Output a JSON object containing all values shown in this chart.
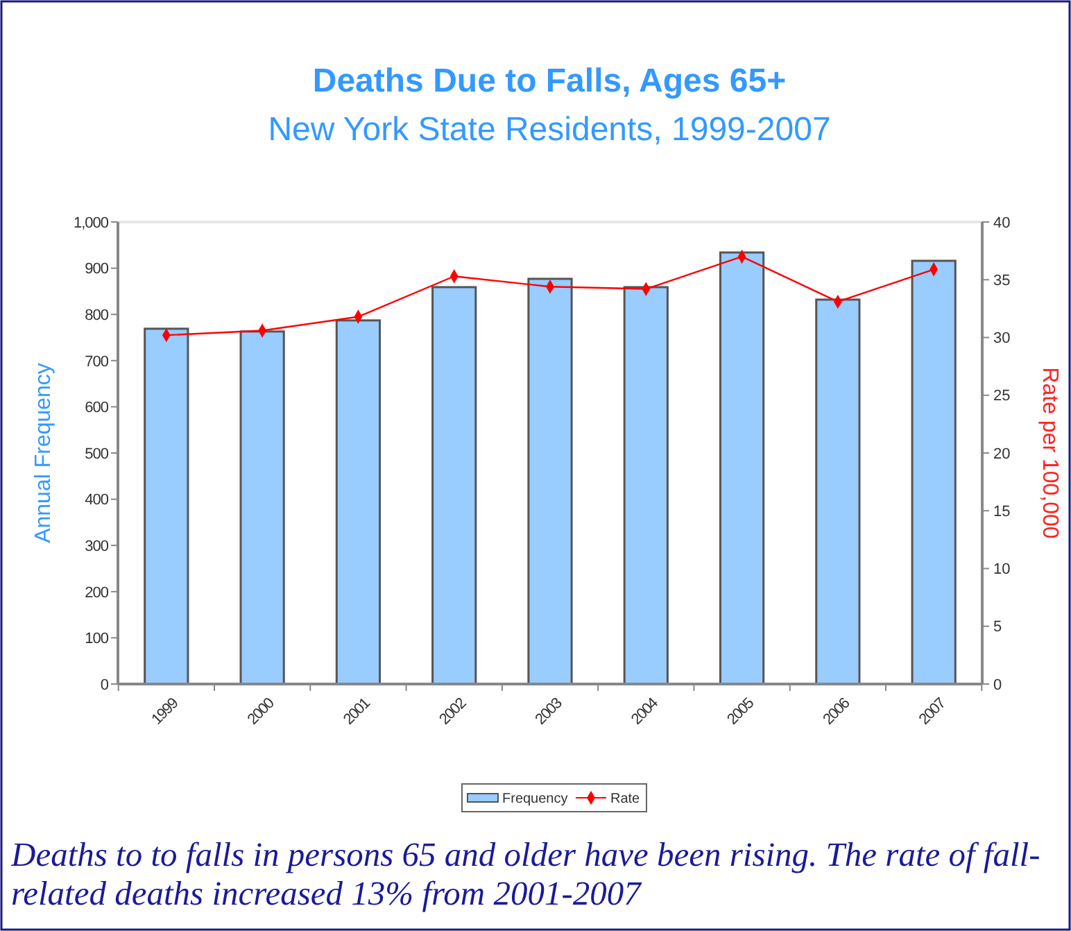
{
  "chart_data": {
    "type": "bar",
    "title": "Deaths Due to Falls, Ages 65+",
    "subtitle": "New York State Residents, 1999-2007",
    "ylabel": "Annual Frequency",
    "y2label": "Rate per 100,000",
    "categories": [
      "1999",
      "2000",
      "2001",
      "2002",
      "2003",
      "2004",
      "2005",
      "2006",
      "2007"
    ],
    "series": [
      {
        "name": "Frequency",
        "color": "#99ccff",
        "values": [
          769,
          763,
          787,
          859,
          877,
          859,
          934,
          832,
          916
        ]
      },
      {
        "name": "Rate",
        "type": "line",
        "axis": "y2",
        "color": "#ff0000",
        "marker": "diamond",
        "values": [
          30.2,
          30.6,
          31.8,
          35.3,
          34.4,
          34.2,
          37.0,
          33.1,
          35.9
        ]
      }
    ],
    "ylim": [
      0,
      1000
    ],
    "yticks": [
      0,
      100,
      200,
      300,
      400,
      500,
      600,
      700,
      800,
      900,
      {
        "value": 1000,
        "label": "1,000"
      }
    ],
    "y2lim": [
      0,
      40
    ],
    "y2ticks": [
      0,
      5,
      10,
      15,
      20,
      25,
      30,
      35,
      40
    ],
    "legend": "bottom",
    "grid": false,
    "annotations": [
      "Deaths to to falls in persons 65 and older have been rising. The rate of fall-related deaths increased 13% from 2001-2007"
    ]
  }
}
